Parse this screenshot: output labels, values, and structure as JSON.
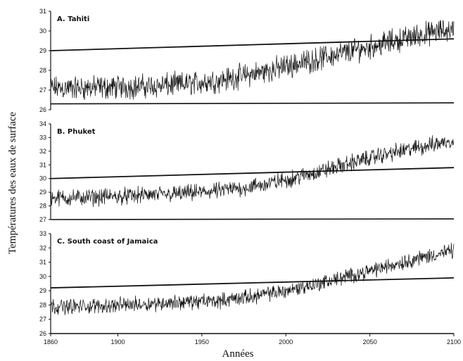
{
  "figure": {
    "ylabel": "Températures des eaux de surface",
    "xlabel": "Années"
  },
  "chart_data": [
    {
      "type": "line",
      "title": "A. Tahiti",
      "xlim": [
        1860,
        2100
      ],
      "ylim": [
        26,
        31
      ],
      "yticks": [
        26,
        27,
        28,
        29,
        30,
        31
      ],
      "threshold": {
        "x": [
          1860,
          2100
        ],
        "y": [
          29.0,
          29.6
        ]
      },
      "baseline": {
        "x": [
          1860,
          2100
        ],
        "y": [
          26.3,
          26.35
        ]
      },
      "series": [
        {
          "x": [
            1860,
            1880,
            1900,
            1920,
            1940,
            1960,
            1980,
            2000,
            2020,
            2040,
            2060,
            2080,
            2100
          ],
          "values": [
            27.1,
            27.1,
            27.15,
            27.2,
            27.3,
            27.5,
            27.8,
            28.2,
            28.6,
            29.0,
            29.4,
            29.8,
            30.1
          ]
        }
      ]
    },
    {
      "type": "line",
      "title": "B. Phuket",
      "xlim": [
        1860,
        2100
      ],
      "ylim": [
        27,
        34
      ],
      "yticks": [
        27,
        28,
        29,
        30,
        31,
        32,
        33,
        34
      ],
      "threshold": {
        "x": [
          1860,
          2100
        ],
        "y": [
          30.0,
          30.8
        ]
      },
      "baseline": {
        "x": [
          1860,
          2100
        ],
        "y": [
          27.0,
          27.05
        ]
      },
      "series": [
        {
          "x": [
            1860,
            1880,
            1900,
            1920,
            1940,
            1960,
            1980,
            2000,
            2020,
            2040,
            2060,
            2080,
            2100
          ],
          "values": [
            28.6,
            28.6,
            28.7,
            28.8,
            28.9,
            29.1,
            29.4,
            29.9,
            30.5,
            31.2,
            31.8,
            32.3,
            32.8
          ]
        }
      ]
    },
    {
      "type": "line",
      "title": "C. South coast of Jamaica",
      "xlim": [
        1860,
        2100
      ],
      "ylim": [
        26,
        33
      ],
      "yticks": [
        26,
        27,
        28,
        29,
        30,
        31,
        32,
        33
      ],
      "xticks": [
        1860,
        1900,
        1950,
        2000,
        2050,
        2100
      ],
      "threshold": {
        "x": [
          1860,
          2100
        ],
        "y": [
          29.2,
          29.9
        ]
      },
      "series": [
        {
          "x": [
            1860,
            1880,
            1900,
            1920,
            1940,
            1960,
            1980,
            2000,
            2020,
            2040,
            2060,
            2080,
            2100
          ],
          "values": [
            27.9,
            27.9,
            28.0,
            28.1,
            28.2,
            28.3,
            28.6,
            29.0,
            29.5,
            30.1,
            30.7,
            31.3,
            31.8
          ]
        }
      ]
    }
  ]
}
